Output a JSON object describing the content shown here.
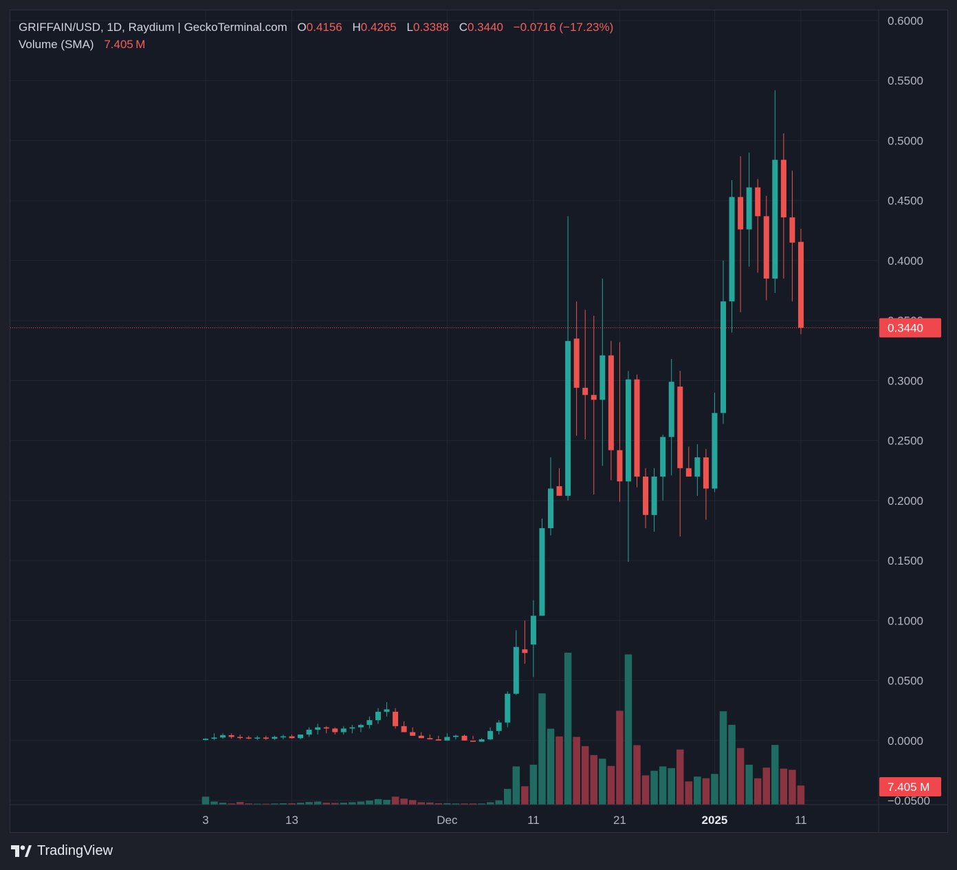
{
  "legend": {
    "symbol": "GRIFFAIN/USD, 1D, Raydium | GeckoTerminal.com",
    "open_label": "O",
    "open_value": "0.4156",
    "high_label": "H",
    "high_value": "0.4265",
    "low_label": "L",
    "low_value": "0.3388",
    "close_label": "C",
    "close_value": "0.3440",
    "change": "−0.0716 (−17.23%)",
    "volume_label": "Volume (SMA)",
    "volume_value": "7.405 M"
  },
  "price_tag": "0.3440",
  "volume_tag": "7.405 M",
  "brand": "TradingView",
  "colors": {
    "up": "#26a69a",
    "down": "#ef5350",
    "up_volume": "#1f6b61",
    "down_volume": "#8a3441",
    "background": "#161a25",
    "grid": "#232734",
    "axis_text": "#b2b5be",
    "tag": "#f0474c"
  },
  "chart_data": {
    "type": "candlestick",
    "title": "",
    "y_axis_ticks": [
      "0.6000",
      "0.5500",
      "0.5000",
      "0.4500",
      "0.4000",
      "0.3500",
      "0.3000",
      "0.2500",
      "0.2000",
      "0.1500",
      "0.1000",
      "0.0500",
      "0.0000",
      "−0.0500"
    ],
    "y_range": [
      -0.05,
      0.6
    ],
    "x_axis_ticks": [
      {
        "label": "3",
        "index": 0,
        "bold": false
      },
      {
        "label": "13",
        "index": 10,
        "bold": false
      },
      {
        "label": "Dec",
        "index": 28,
        "bold": false
      },
      {
        "label": "11",
        "index": 38,
        "bold": false
      },
      {
        "label": "21",
        "index": 48,
        "bold": false
      },
      {
        "label": "2025",
        "index": 59,
        "bold": true
      },
      {
        "label": "11",
        "index": 69,
        "bold": false
      }
    ],
    "x_range": [
      -24,
      79
    ],
    "last_price": 0.344,
    "last_volume_sma": 7405000,
    "volume_axis_max": 81000000,
    "candles": [
      {
        "o": 0.0005,
        "h": 0.002,
        "l": 0.0,
        "c": 0.0015,
        "v": 3300000
      },
      {
        "o": 0.0015,
        "h": 0.006,
        "l": 0.0005,
        "c": 0.0025,
        "v": 1300000
      },
      {
        "o": 0.0025,
        "h": 0.006,
        "l": 0.0015,
        "c": 0.0045,
        "v": 800000
      },
      {
        "o": 0.0045,
        "h": 0.006,
        "l": 0.0015,
        "c": 0.003,
        "v": 500000
      },
      {
        "o": 0.003,
        "h": 0.005,
        "l": 0.001,
        "c": 0.0025,
        "v": 1100000
      },
      {
        "o": 0.0025,
        "h": 0.004,
        "l": 0.001,
        "c": 0.002,
        "v": 500000
      },
      {
        "o": 0.002,
        "h": 0.004,
        "l": 0.0005,
        "c": 0.0025,
        "v": 400000
      },
      {
        "o": 0.0025,
        "h": 0.004,
        "l": 0.0005,
        "c": 0.0015,
        "v": 400000
      },
      {
        "o": 0.0015,
        "h": 0.004,
        "l": 0.0005,
        "c": 0.003,
        "v": 500000
      },
      {
        "o": 0.003,
        "h": 0.005,
        "l": 0.001,
        "c": 0.0035,
        "v": 600000
      },
      {
        "o": 0.0035,
        "h": 0.005,
        "l": 0.0015,
        "c": 0.002,
        "v": 600000
      },
      {
        "o": 0.002,
        "h": 0.005,
        "l": 0.001,
        "c": 0.005,
        "v": 800000
      },
      {
        "o": 0.005,
        "h": 0.011,
        "l": 0.003,
        "c": 0.009,
        "v": 1100000
      },
      {
        "o": 0.009,
        "h": 0.014,
        "l": 0.005,
        "c": 0.011,
        "v": 1300000
      },
      {
        "o": 0.011,
        "h": 0.012,
        "l": 0.006,
        "c": 0.01,
        "v": 800000
      },
      {
        "o": 0.01,
        "h": 0.011,
        "l": 0.005,
        "c": 0.007,
        "v": 700000
      },
      {
        "o": 0.007,
        "h": 0.012,
        "l": 0.005,
        "c": 0.01,
        "v": 800000
      },
      {
        "o": 0.01,
        "h": 0.013,
        "l": 0.006,
        "c": 0.011,
        "v": 1000000
      },
      {
        "o": 0.011,
        "h": 0.014,
        "l": 0.007,
        "c": 0.013,
        "v": 1300000
      },
      {
        "o": 0.013,
        "h": 0.02,
        "l": 0.01,
        "c": 0.017,
        "v": 1700000
      },
      {
        "o": 0.017,
        "h": 0.027,
        "l": 0.014,
        "c": 0.024,
        "v": 2300000
      },
      {
        "o": 0.024,
        "h": 0.032,
        "l": 0.02,
        "c": 0.026,
        "v": 2000000
      },
      {
        "o": 0.024,
        "h": 0.027,
        "l": 0.01,
        "c": 0.012,
        "v": 3300000
      },
      {
        "o": 0.012,
        "h": 0.016,
        "l": 0.008,
        "c": 0.007,
        "v": 2500000
      },
      {
        "o": 0.007,
        "h": 0.011,
        "l": 0.004,
        "c": 0.004,
        "v": 1900000
      },
      {
        "o": 0.004,
        "h": 0.007,
        "l": 0.002,
        "c": 0.002,
        "v": 1000000
      },
      {
        "o": 0.002,
        "h": 0.005,
        "l": 0.001,
        "c": 0.001,
        "v": 900000
      },
      {
        "o": 0.001,
        "h": 0.004,
        "l": 0.0005,
        "c": 0.0,
        "v": 600000
      },
      {
        "o": 0.0,
        "h": 0.006,
        "l": 0.0005,
        "c": 0.003,
        "v": 600000
      },
      {
        "o": 0.003,
        "h": 0.005,
        "l": 0.001,
        "c": 0.004,
        "v": 500000
      },
      {
        "o": 0.004,
        "h": 0.005,
        "l": 0.001,
        "c": 0.0,
        "v": 500000
      },
      {
        "o": 0.0,
        "h": 0.004,
        "l": 0.001,
        "c": -0.001,
        "v": 500000
      },
      {
        "o": -0.001,
        "h": 0.002,
        "l": 0.001,
        "c": 0.001,
        "v": 500000
      },
      {
        "o": 0.001,
        "h": 0.011,
        "l": 0.0005,
        "c": 0.008,
        "v": 1000000
      },
      {
        "o": 0.008,
        "h": 0.017,
        "l": 0.005,
        "c": 0.015,
        "v": 1800000
      },
      {
        "o": 0.015,
        "h": 0.041,
        "l": 0.011,
        "c": 0.039,
        "v": 6500000
      },
      {
        "o": 0.039,
        "h": 0.092,
        "l": 0.038,
        "c": 0.078,
        "v": 15800000
      },
      {
        "o": 0.076,
        "h": 0.1,
        "l": 0.064,
        "c": 0.073,
        "v": 7600000
      },
      {
        "o": 0.08,
        "h": 0.117,
        "l": 0.053,
        "c": 0.104,
        "v": 16500000
      },
      {
        "o": 0.104,
        "h": 0.185,
        "l": 0.104,
        "c": 0.177,
        "v": 46000000
      },
      {
        "o": 0.177,
        "h": 0.236,
        "l": 0.171,
        "c": 0.21,
        "v": 31400000
      },
      {
        "o": 0.212,
        "h": 0.227,
        "l": 0.204,
        "c": 0.204,
        "v": 28200000
      },
      {
        "o": 0.204,
        "h": 0.437,
        "l": 0.2,
        "c": 0.333,
        "v": 62800000
      },
      {
        "o": 0.335,
        "h": 0.366,
        "l": 0.254,
        "c": 0.294,
        "v": 28000000
      },
      {
        "o": 0.294,
        "h": 0.359,
        "l": 0.251,
        "c": 0.288,
        "v": 24200000
      },
      {
        "o": 0.288,
        "h": 0.354,
        "l": 0.205,
        "c": 0.284,
        "v": 20500000
      },
      {
        "o": 0.284,
        "h": 0.385,
        "l": 0.229,
        "c": 0.321,
        "v": 19000000
      },
      {
        "o": 0.321,
        "h": 0.333,
        "l": 0.217,
        "c": 0.242,
        "v": 16000000
      },
      {
        "o": 0.242,
        "h": 0.332,
        "l": 0.199,
        "c": 0.216,
        "v": 38800000
      },
      {
        "o": 0.216,
        "h": 0.308,
        "l": 0.149,
        "c": 0.301,
        "v": 62100000
      },
      {
        "o": 0.301,
        "h": 0.305,
        "l": 0.211,
        "c": 0.22,
        "v": 24600000
      },
      {
        "o": 0.22,
        "h": 0.227,
        "l": 0.177,
        "c": 0.188,
        "v": 12100000
      },
      {
        "o": 0.188,
        "h": 0.227,
        "l": 0.174,
        "c": 0.22,
        "v": 14000000
      },
      {
        "o": 0.22,
        "h": 0.255,
        "l": 0.2,
        "c": 0.253,
        "v": 15800000
      },
      {
        "o": 0.253,
        "h": 0.318,
        "l": 0.221,
        "c": 0.299,
        "v": 15100000
      },
      {
        "o": 0.295,
        "h": 0.308,
        "l": 0.17,
        "c": 0.227,
        "v": 22800000
      },
      {
        "o": 0.227,
        "h": 0.245,
        "l": 0.22,
        "c": 0.22,
        "v": 9600000
      },
      {
        "o": 0.22,
        "h": 0.247,
        "l": 0.204,
        "c": 0.236,
        "v": 11600000
      },
      {
        "o": 0.236,
        "h": 0.243,
        "l": 0.184,
        "c": 0.21,
        "v": 10900000
      },
      {
        "o": 0.21,
        "h": 0.29,
        "l": 0.207,
        "c": 0.273,
        "v": 12700000
      },
      {
        "o": 0.273,
        "h": 0.4,
        "l": 0.264,
        "c": 0.366,
        "v": 38600000
      },
      {
        "o": 0.366,
        "h": 0.467,
        "l": 0.34,
        "c": 0.453,
        "v": 33000000
      },
      {
        "o": 0.453,
        "h": 0.487,
        "l": 0.357,
        "c": 0.426,
        "v": 23400000
      },
      {
        "o": 0.426,
        "h": 0.49,
        "l": 0.395,
        "c": 0.461,
        "v": 16500000
      },
      {
        "o": 0.461,
        "h": 0.468,
        "l": 0.39,
        "c": 0.437,
        "v": 10900000
      },
      {
        "o": 0.437,
        "h": 0.454,
        "l": 0.367,
        "c": 0.385,
        "v": 15300000
      },
      {
        "o": 0.385,
        "h": 0.542,
        "l": 0.373,
        "c": 0.484,
        "v": 24700000
      },
      {
        "o": 0.484,
        "h": 0.506,
        "l": 0.385,
        "c": 0.436,
        "v": 14900000
      },
      {
        "o": 0.436,
        "h": 0.475,
        "l": 0.366,
        "c": 0.415,
        "v": 14400000
      },
      {
        "o": 0.4156,
        "h": 0.4265,
        "l": 0.3388,
        "c": 0.344,
        "v": 7900000
      }
    ]
  }
}
